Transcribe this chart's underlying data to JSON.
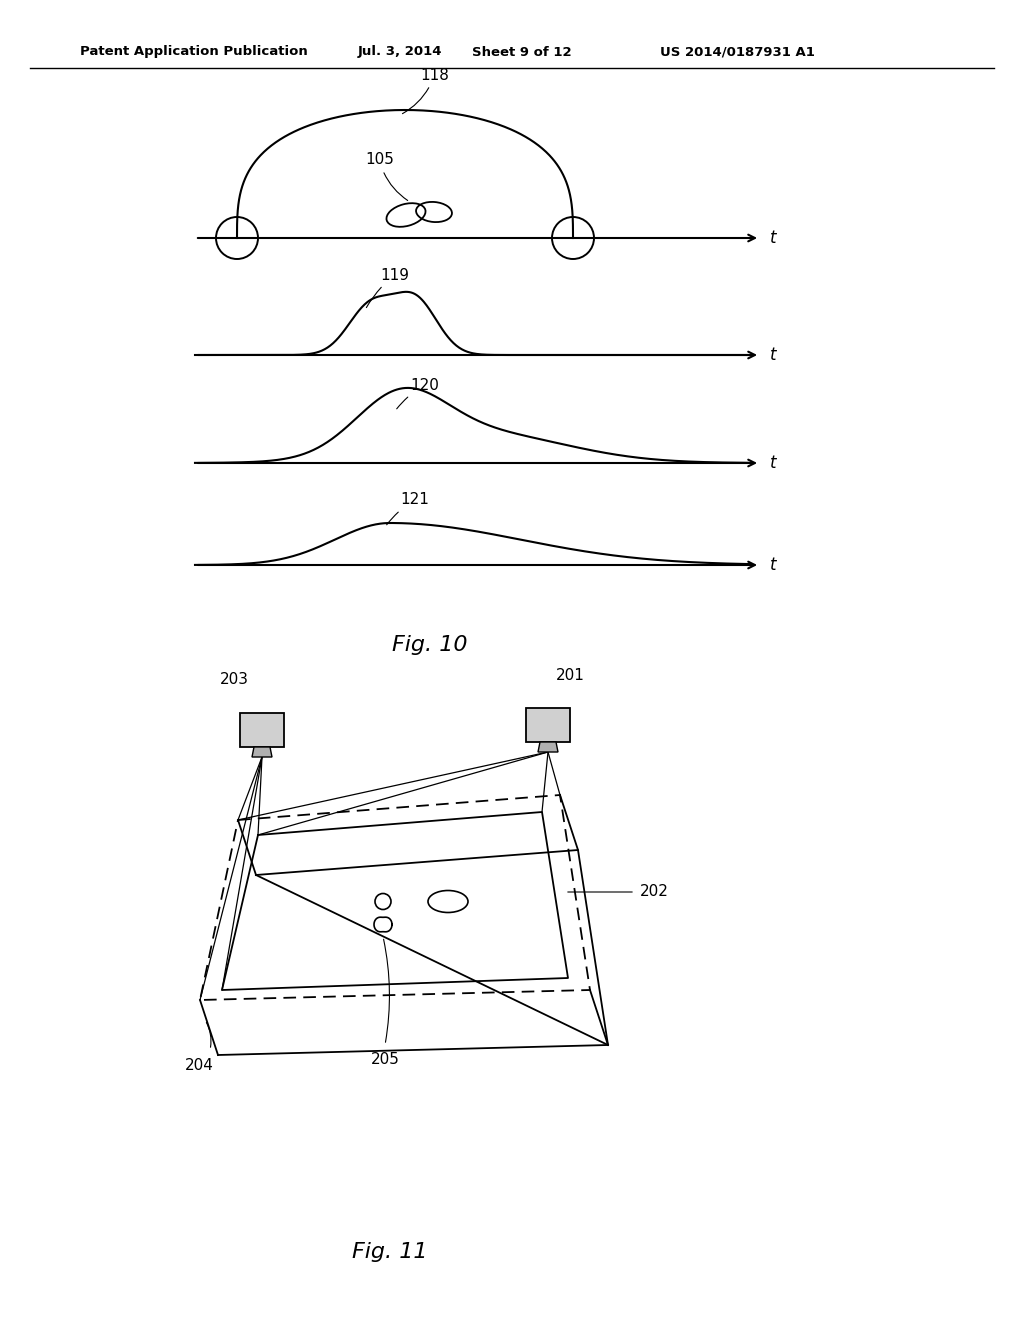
{
  "bg_color": "#ffffff",
  "header_text": "Patent Application Publication",
  "header_date": "Jul. 3, 2014",
  "header_sheet": "Sheet 9 of 12",
  "header_patent": "US 2014/0187931 A1",
  "fig10_label": "Fig. 10",
  "fig11_label": "Fig. 11",
  "label_118": "118",
  "label_105": "105",
  "label_119": "119",
  "label_120": "120",
  "label_121": "121",
  "label_201": "201",
  "label_202": "202",
  "label_203": "203",
  "label_204": "204",
  "label_205": "205",
  "line_color": "#000000",
  "text_color": "#000000"
}
